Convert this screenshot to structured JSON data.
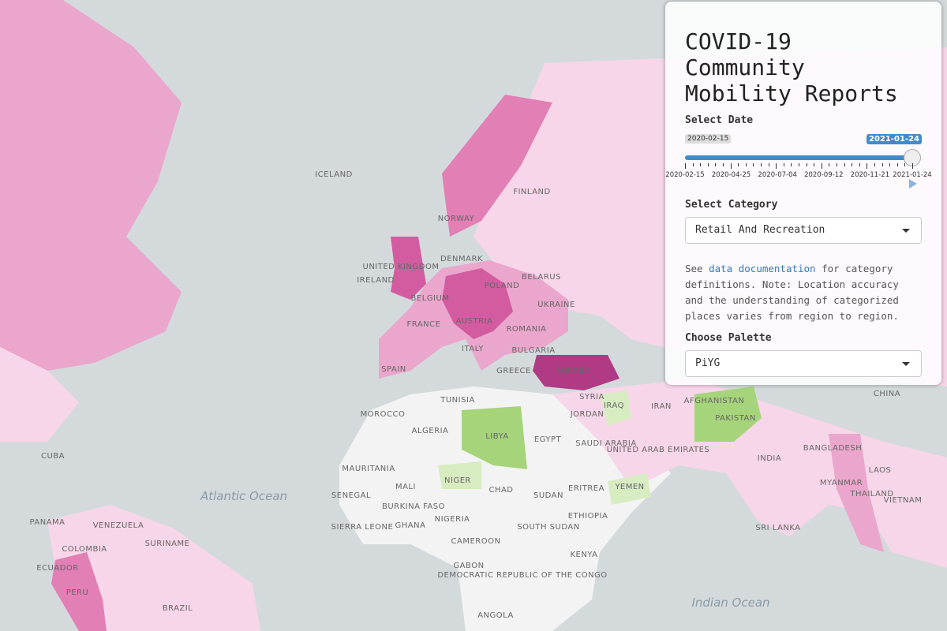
{
  "panel": {
    "title": "COVID-19 Community Mobility Reports",
    "date_slider": {
      "label": "Select Date",
      "min": "2020-02-15",
      "max": "2021-01-24",
      "value": "2021-01-24",
      "ticks": [
        "2020-02-15",
        "2020-04-25",
        "2020-07-04",
        "2020-09-12",
        "2020-11-21",
        "2021-01-24"
      ]
    },
    "category_select": {
      "label": "Select Category",
      "value": "Retail And Recreation"
    },
    "note": {
      "prefix": "See ",
      "link": "data documentation",
      "suffix": " for category definitions. Note: Location accuracy and the understanding of categorized places varies from region to region."
    },
    "palette_select": {
      "label": "Choose Palette",
      "value": "PiYG"
    }
  },
  "map": {
    "labels": [
      "ICELAND",
      "FINLAND",
      "NORWAY",
      "DENMARK",
      "UNITED KINGDOM",
      "IRELAND",
      "BELARUS",
      "POLAND",
      "BELGIUM",
      "UKRAINE",
      "FRANCE",
      "AUSTRIA",
      "ROMANIA",
      "ITALY",
      "BULGARIA",
      "SPAIN",
      "GREECE",
      "TURKEY",
      "CHINA",
      "TUNISIA",
      "SYRIA",
      "IRAQ",
      "IRAN",
      "MOROCCO",
      "ALGERIA",
      "LIBYA",
      "JORDAN",
      "EGYPT",
      "SAUDI ARABIA",
      "UNITED ARAB EMIRATES",
      "AFGHANISTAN",
      "PAKISTAN",
      "INDIA",
      "BANGLADESH",
      "CUBA",
      "MAURITANIA",
      "MALI",
      "NIGER",
      "CHAD",
      "SUDAN",
      "ERITREA",
      "YEMEN",
      "MYANMAR",
      "LAOS",
      "THAILAND",
      "VIETNAM",
      "SENEGAL",
      "BURKINA FASO",
      "ETHIOPIA",
      "NIGERIA",
      "GHANA",
      "SOUTH SUDAN",
      "SRI LANKA",
      "SIERRA LEONE",
      "VENEZUELA",
      "PANAMA",
      "SURINAME",
      "COLOMBIA",
      "CAMEROON",
      "KENYA",
      "GABON",
      "DEMOCRATIC REPUBLIC OF THE CONGO",
      "ECUADOR",
      "PERU",
      "BRAZIL",
      "ANGOLA",
      "Atlantic Ocean",
      "Indian Ocean"
    ]
  }
}
